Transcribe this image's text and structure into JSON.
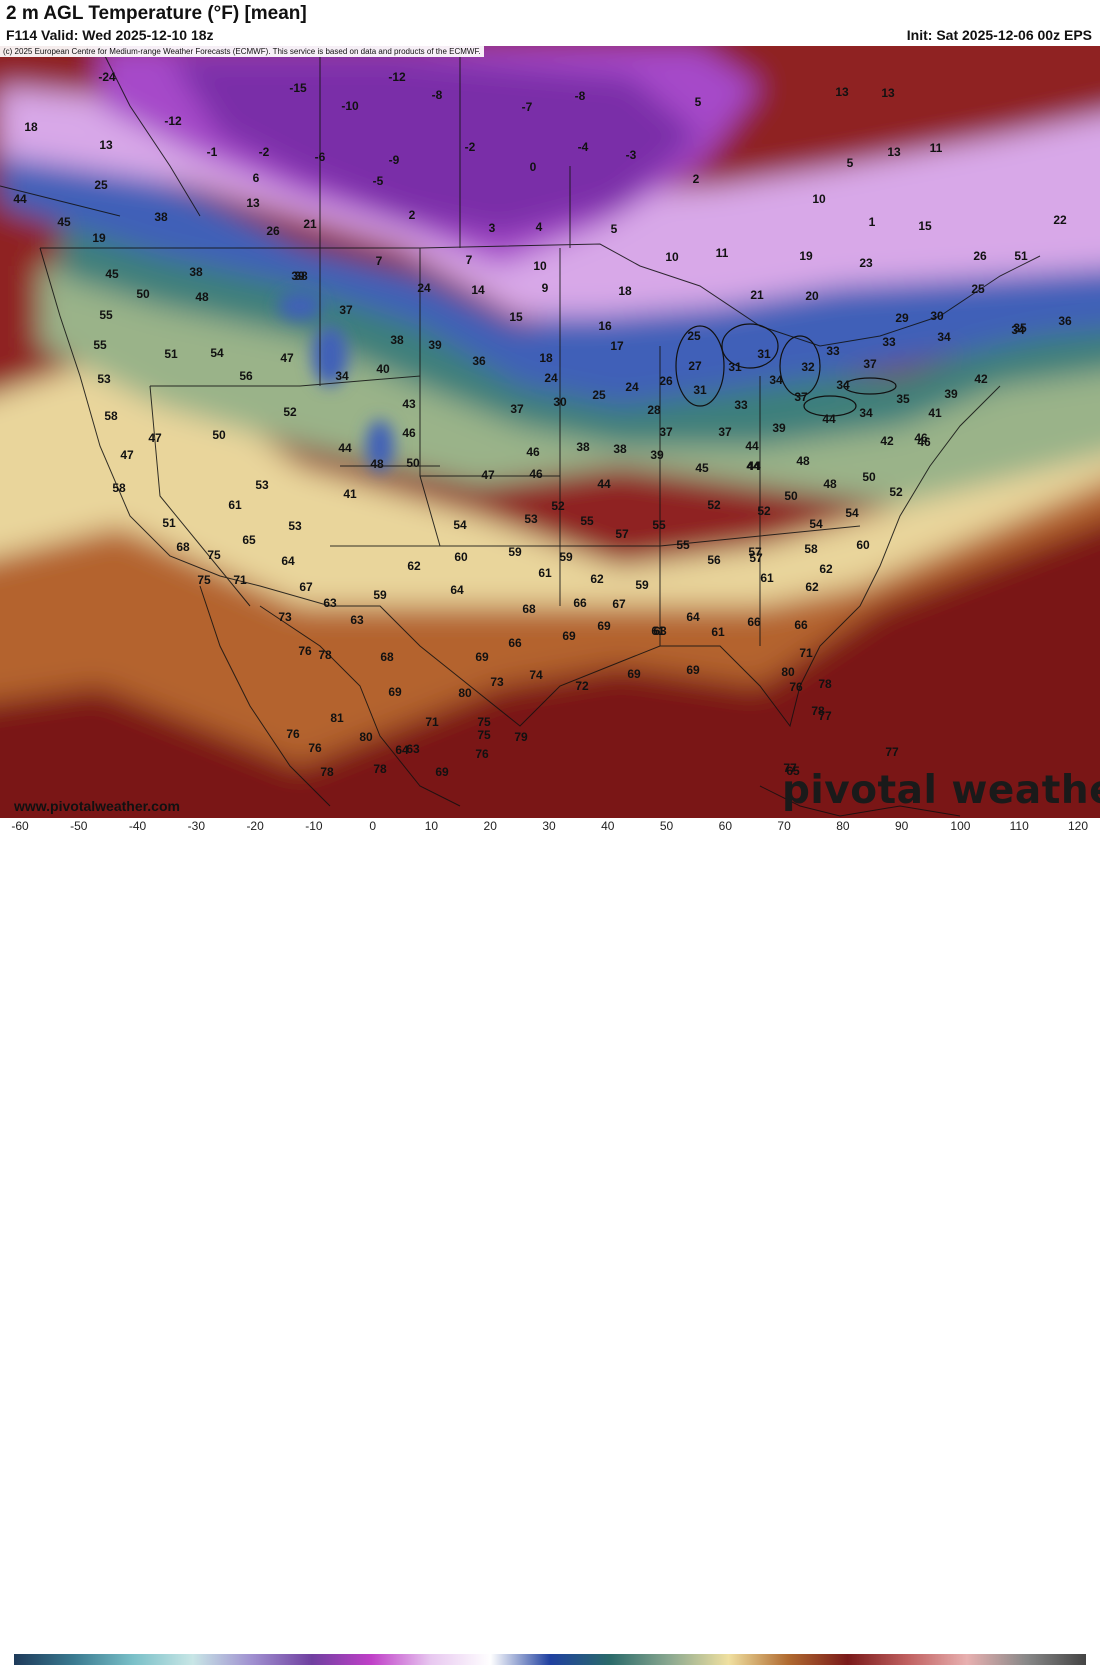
{
  "header": {
    "title": "2 m AGL Temperature (°F) [mean]",
    "valid": "F114 Valid: Wed 2025-12-10 18z",
    "init": "Init: Sat 2025-12-06 00z EPS"
  },
  "copyright": "(c) 2025 European Centre for Medium-range Weather Forecasts (ECMWF). This service is based on data and products of the ECMWF.",
  "branding": {
    "site": "www.pivotalweather.com",
    "wordmark": "pivotal weather"
  },
  "legend": {
    "ticks": [
      "-60",
      "-50",
      "-40",
      "-30",
      "-20",
      "-10",
      "0",
      "10",
      "20",
      "30",
      "40",
      "50",
      "60",
      "70",
      "80",
      "90",
      "100",
      "110",
      "120"
    ],
    "colors": [
      "#1e3a5a",
      "#3a7a90",
      "#7ac0c8",
      "#c8e6e6",
      "#a090d0",
      "#7040a0",
      "#c040c8",
      "#e8c8f0",
      "#ffffff",
      "#2040a0",
      "#2a6a6a",
      "#8aa890",
      "#f0e0a0",
      "#b06a30",
      "#7a1a1a",
      "#c06060",
      "#e8b0b0",
      "#888888",
      "#444444"
    ]
  },
  "map_colors": {
    "water": "#2a6d92",
    "deep_cold": "#7a2fa8",
    "cold": "#a64ac9",
    "cool": "#d8a8e8",
    "freezing": "#3f60b8",
    "mild_cold": "#3c7f7a",
    "mild": "#9ab389",
    "warm": "#e9d59b",
    "hot": "#b4632e",
    "very_hot": "#7a1616",
    "ocean_warm": "#8f2020"
  },
  "temperatures": [
    {
      "label": "-24"
    },
    {
      "label": "-12"
    },
    {
      "label": "-15"
    },
    {
      "label": "-10"
    },
    {
      "label": "-8"
    },
    {
      "label": "-7"
    },
    {
      "label": "-8"
    },
    {
      "label": "5"
    },
    {
      "label": "13"
    },
    {
      "label": "13"
    },
    {
      "label": "18"
    },
    {
      "label": "-12"
    },
    {
      "label": "13"
    },
    {
      "label": "-1"
    },
    {
      "label": "-2"
    },
    {
      "label": "-6"
    },
    {
      "label": "-9"
    },
    {
      "label": "-2"
    },
    {
      "label": "-4"
    },
    {
      "label": "-3"
    },
    {
      "label": "0"
    },
    {
      "label": "13"
    },
    {
      "label": "11"
    },
    {
      "label": "5"
    },
    {
      "label": "25"
    },
    {
      "label": "6"
    },
    {
      "label": "-5"
    },
    {
      "label": "2"
    },
    {
      "label": "10"
    },
    {
      "label": "44"
    },
    {
      "label": "13"
    },
    {
      "label": "2"
    },
    {
      "label": "38"
    },
    {
      "label": "26"
    },
    {
      "label": "21"
    },
    {
      "label": "3"
    },
    {
      "label": "4"
    },
    {
      "label": "5"
    },
    {
      "label": "1"
    },
    {
      "label": "15"
    },
    {
      "label": "22"
    },
    {
      "label": "45"
    },
    {
      "label": "19"
    },
    {
      "label": "7"
    },
    {
      "label": "7"
    },
    {
      "label": "10"
    },
    {
      "label": "10"
    },
    {
      "label": "11"
    },
    {
      "label": "19"
    },
    {
      "label": "23"
    },
    {
      "label": "26"
    },
    {
      "label": "51"
    },
    {
      "label": "45"
    },
    {
      "label": "38"
    },
    {
      "label": "39"
    },
    {
      "label": "24"
    },
    {
      "label": "14"
    },
    {
      "label": "9"
    },
    {
      "label": "18"
    },
    {
      "label": "21"
    },
    {
      "label": "20"
    },
    {
      "label": "25"
    },
    {
      "label": "50"
    },
    {
      "label": "48"
    },
    {
      "label": "55"
    },
    {
      "label": "38"
    },
    {
      "label": "37"
    },
    {
      "label": "15"
    },
    {
      "label": "16"
    },
    {
      "label": "29"
    },
    {
      "label": "30"
    },
    {
      "label": "34"
    },
    {
      "label": "36"
    },
    {
      "label": "55"
    },
    {
      "label": "51"
    },
    {
      "label": "54"
    },
    {
      "label": "47"
    },
    {
      "label": "38"
    },
    {
      "label": "39"
    },
    {
      "label": "17"
    },
    {
      "label": "25"
    },
    {
      "label": "31"
    },
    {
      "label": "33"
    },
    {
      "label": "33"
    },
    {
      "label": "34"
    },
    {
      "label": "35"
    },
    {
      "label": "53"
    },
    {
      "label": "56"
    },
    {
      "label": "34"
    },
    {
      "label": "40"
    },
    {
      "label": "36"
    },
    {
      "label": "18"
    },
    {
      "label": "27"
    },
    {
      "label": "31"
    },
    {
      "label": "34"
    },
    {
      "label": "32"
    },
    {
      "label": "37"
    },
    {
      "label": "42"
    },
    {
      "label": "58"
    },
    {
      "label": "52"
    },
    {
      "label": "43"
    },
    {
      "label": "24"
    },
    {
      "label": "30"
    },
    {
      "label": "25"
    },
    {
      "label": "24"
    },
    {
      "label": "26"
    },
    {
      "label": "31"
    },
    {
      "label": "33"
    },
    {
      "label": "37"
    },
    {
      "label": "34"
    },
    {
      "label": "35"
    },
    {
      "label": "39"
    },
    {
      "label": "47"
    },
    {
      "label": "50"
    },
    {
      "label": "37"
    },
    {
      "label": "28"
    },
    {
      "label": "37"
    },
    {
      "label": "37"
    },
    {
      "label": "44"
    },
    {
      "label": "46"
    },
    {
      "label": "44"
    },
    {
      "label": "46"
    },
    {
      "label": "34"
    },
    {
      "label": "41"
    },
    {
      "label": "39"
    },
    {
      "label": "42"
    },
    {
      "label": "46"
    },
    {
      "label": "44"
    },
    {
      "label": "44"
    },
    {
      "label": "38"
    },
    {
      "label": "38"
    },
    {
      "label": "39"
    },
    {
      "label": "48"
    },
    {
      "label": "46"
    },
    {
      "label": "47"
    },
    {
      "label": "58"
    },
    {
      "label": "47"
    },
    {
      "label": "41"
    },
    {
      "label": "50"
    },
    {
      "label": "46"
    },
    {
      "label": "44"
    },
    {
      "label": "45"
    },
    {
      "label": "44"
    },
    {
      "label": "48"
    },
    {
      "label": "50"
    },
    {
      "label": "52"
    },
    {
      "label": "61"
    },
    {
      "label": "53"
    },
    {
      "label": "52"
    },
    {
      "label": "50"
    },
    {
      "label": "52"
    },
    {
      "label": "51"
    },
    {
      "label": "53"
    },
    {
      "label": "54"
    },
    {
      "label": "53"
    },
    {
      "label": "55"
    },
    {
      "label": "52"
    },
    {
      "label": "54"
    },
    {
      "label": "48"
    },
    {
      "label": "55"
    },
    {
      "label": "57"
    },
    {
      "label": "55"
    },
    {
      "label": "54"
    },
    {
      "label": "60"
    },
    {
      "label": "68"
    },
    {
      "label": "65"
    },
    {
      "label": "57"
    },
    {
      "label": "58"
    },
    {
      "label": "75"
    },
    {
      "label": "64"
    },
    {
      "label": "62"
    },
    {
      "label": "60"
    },
    {
      "label": "59"
    },
    {
      "label": "59"
    },
    {
      "label": "56"
    },
    {
      "label": "57"
    },
    {
      "label": "62"
    },
    {
      "label": "75"
    },
    {
      "label": "71"
    },
    {
      "label": "67"
    },
    {
      "label": "63"
    },
    {
      "label": "64"
    },
    {
      "label": "61"
    },
    {
      "label": "62"
    },
    {
      "label": "59"
    },
    {
      "label": "61"
    },
    {
      "label": "61"
    },
    {
      "label": "61"
    },
    {
      "label": "62"
    },
    {
      "label": "73"
    },
    {
      "label": "63"
    },
    {
      "label": "59"
    },
    {
      "label": "68"
    },
    {
      "label": "66"
    },
    {
      "label": "67"
    },
    {
      "label": "64"
    },
    {
      "label": "66"
    },
    {
      "label": "66"
    },
    {
      "label": "69"
    },
    {
      "label": "69"
    },
    {
      "label": "63"
    },
    {
      "label": "66"
    },
    {
      "label": "76"
    },
    {
      "label": "68"
    },
    {
      "label": "69"
    },
    {
      "label": "78"
    },
    {
      "label": "72"
    },
    {
      "label": "69"
    },
    {
      "label": "69"
    },
    {
      "label": "71"
    },
    {
      "label": "80"
    },
    {
      "label": "73"
    },
    {
      "label": "74"
    },
    {
      "label": "76"
    },
    {
      "label": "69"
    },
    {
      "label": "80"
    },
    {
      "label": "78"
    },
    {
      "label": "78"
    },
    {
      "label": "75"
    },
    {
      "label": "81"
    },
    {
      "label": "71"
    },
    {
      "label": "75"
    },
    {
      "label": "77"
    },
    {
      "label": "76"
    },
    {
      "label": "76"
    },
    {
      "label": "80"
    },
    {
      "label": "79"
    },
    {
      "label": "78"
    },
    {
      "label": "64"
    },
    {
      "label": "63"
    },
    {
      "label": "78"
    },
    {
      "label": "76"
    },
    {
      "label": "65"
    },
    {
      "label": "77"
    },
    {
      "label": "77"
    },
    {
      "label": "69"
    }
  ]
}
